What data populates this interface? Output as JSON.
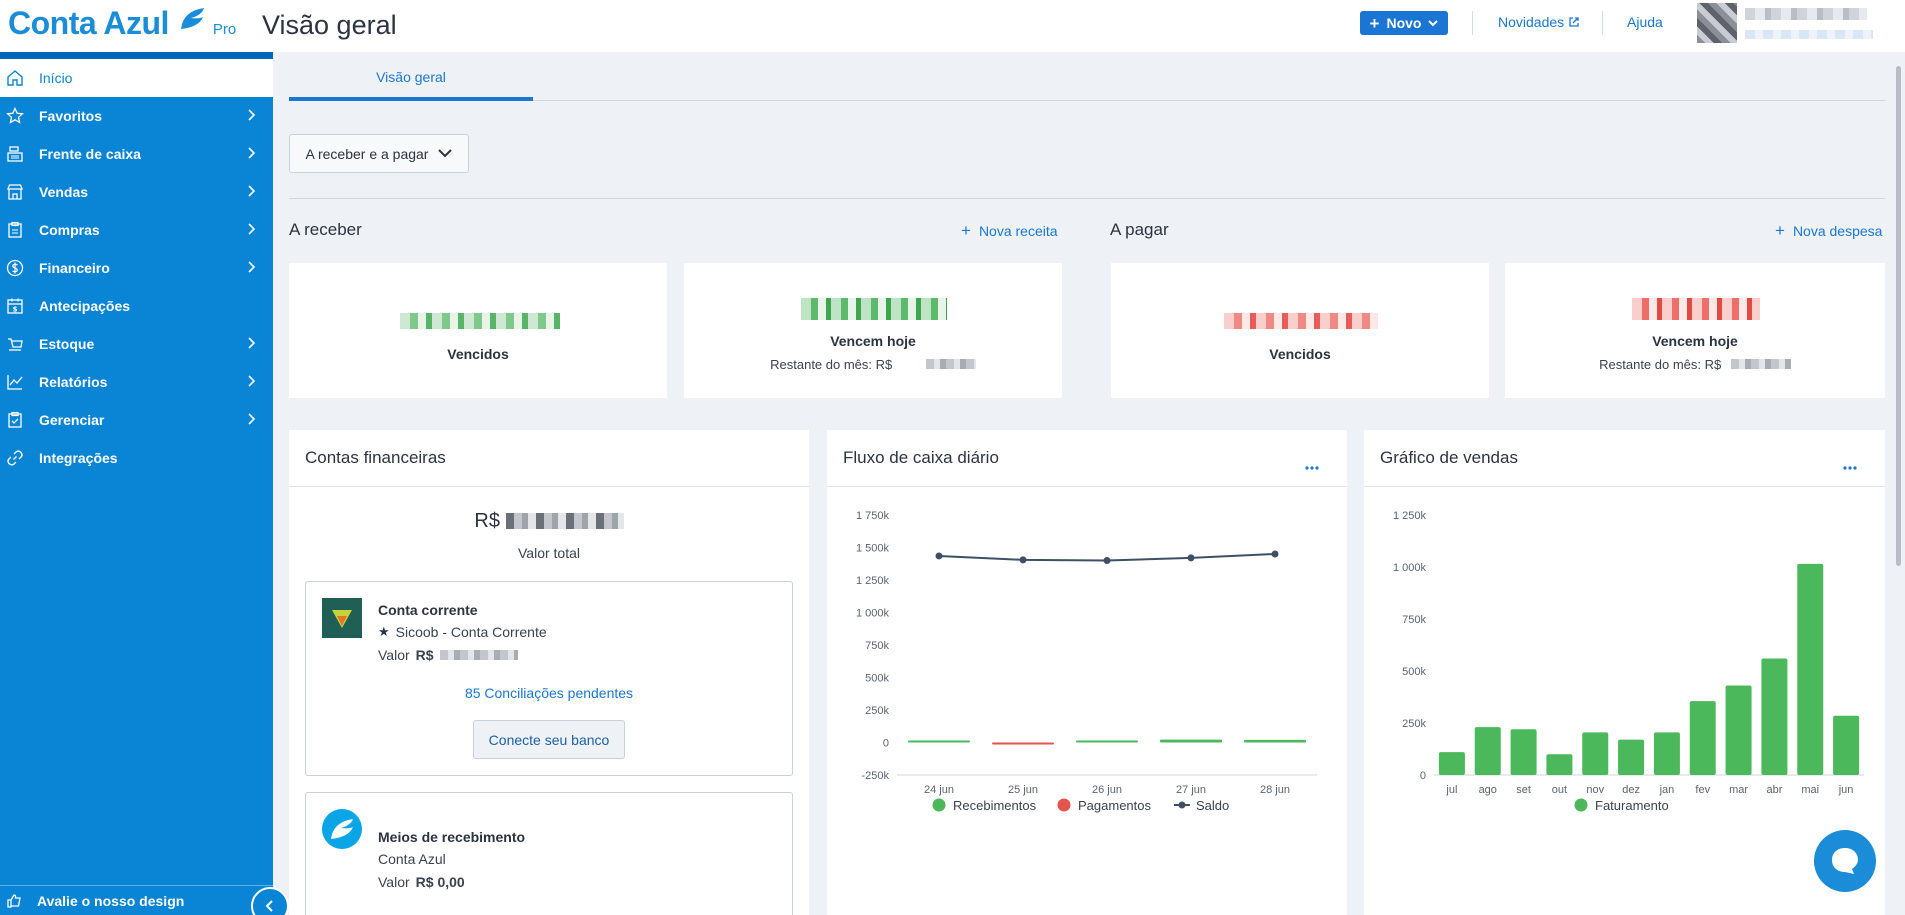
{
  "app": {
    "brand": "Conta Azul",
    "plan": "Pro",
    "page_title": "Visão geral",
    "colors": {
      "brand": "#1a8cd8",
      "sidebar": "#0a84d4",
      "accent": "#1a76d2",
      "receive": "#4cb85c",
      "pay": "#e5554f",
      "balance": "#3d5066"
    }
  },
  "header": {
    "new_button": "Novo",
    "news_link": "Novidades",
    "help_link": "Ajuda"
  },
  "sidebar": {
    "items": [
      {
        "label": "Início",
        "icon": "home-icon",
        "active": true,
        "has_children": false
      },
      {
        "label": "Favoritos",
        "icon": "star-icon",
        "active": false,
        "has_children": true
      },
      {
        "label": "Frente de caixa",
        "icon": "cash-register-icon",
        "active": false,
        "has_children": true
      },
      {
        "label": "Vendas",
        "icon": "store-icon",
        "active": false,
        "has_children": true
      },
      {
        "label": "Compras",
        "icon": "clipboard-icon",
        "active": false,
        "has_children": true
      },
      {
        "label": "Financeiro",
        "icon": "dollar-circle-icon",
        "active": false,
        "has_children": true
      },
      {
        "label": "Antecipações",
        "icon": "calendar-money-icon",
        "active": false,
        "has_children": false
      },
      {
        "label": "Estoque",
        "icon": "box-icon",
        "active": false,
        "has_children": true
      },
      {
        "label": "Relatórios",
        "icon": "line-chart-icon",
        "active": false,
        "has_children": true
      },
      {
        "label": "Gerenciar",
        "icon": "checklist-icon",
        "active": false,
        "has_children": true
      },
      {
        "label": "Integrações",
        "icon": "link-icon",
        "active": false,
        "has_children": false
      }
    ],
    "footer": "Avalie o nosso design"
  },
  "tabs": {
    "active": "Visão geral"
  },
  "filter": {
    "label": "A receber e a pagar"
  },
  "receivable": {
    "title": "A receber",
    "action": "Nova receita",
    "overdue_label": "Vencidos",
    "today_label": "Vencem hoje",
    "month_rest_label": "Restante do mês: R$"
  },
  "payable": {
    "title": "A pagar",
    "action": "Nova despesa",
    "overdue_label": "Vencidos",
    "today_label": "Vencem hoje",
    "month_rest_label": "Restante do mês: R$"
  },
  "accounts": {
    "title": "Contas financeiras",
    "currency": "R$",
    "total_label": "Valor total",
    "checking": {
      "title": "Conta corrente",
      "bank": "Sicoob - Conta Corrente",
      "value_label": "Valor",
      "value_currency": "R$",
      "pending": "85 Conciliações pendentes",
      "connect_button": "Conecte seu banco"
    },
    "receiving": {
      "title": "Meios de recebimento",
      "provider": "Conta Azul",
      "value_label": "Valor",
      "value": "R$ 0,00"
    }
  },
  "cashflow": {
    "title": "Fluxo de caixa diário",
    "menu": "···",
    "legend": [
      "Recebimentos",
      "Pagamentos",
      "Saldo"
    ]
  },
  "sales": {
    "title": "Gráfico de vendas",
    "menu": "···",
    "legend": [
      "Faturamento"
    ]
  },
  "chart_data": [
    {
      "type": "line",
      "title": "Fluxo de caixa diário",
      "categories": [
        "24 jun",
        "25 jun",
        "26 jun",
        "27 jun",
        "28 jun"
      ],
      "y_ticks": [
        "1 750k",
        "1 500k",
        "1 250k",
        "1 000k",
        "750k",
        "500k",
        "250k",
        "0",
        "-250k"
      ],
      "ylim": [
        -250000,
        1750000
      ],
      "series": [
        {
          "name": "Recebimentos",
          "kind": "bar",
          "color": "#4cb85c",
          "values": [
            8000,
            0,
            4000,
            22000,
            20000
          ]
        },
        {
          "name": "Pagamentos",
          "kind": "bar",
          "color": "#e5554f",
          "values": [
            0,
            -12000,
            0,
            0,
            0
          ]
        },
        {
          "name": "Saldo",
          "kind": "line",
          "color": "#3d5066",
          "values": [
            1435000,
            1405000,
            1400000,
            1420000,
            1450000
          ]
        }
      ],
      "legend": "bottom",
      "grid": false
    },
    {
      "type": "bar",
      "title": "Gráfico de vendas",
      "categories": [
        "jul",
        "ago",
        "set",
        "out",
        "nov",
        "dez",
        "jan",
        "fev",
        "mar",
        "abr",
        "mai",
        "jun"
      ],
      "y_ticks": [
        "1 250k",
        "1 000k",
        "750k",
        "500k",
        "250k",
        "0"
      ],
      "ylim": [
        0,
        1250000
      ],
      "series": [
        {
          "name": "Faturamento",
          "color": "#4cb85c",
          "values": [
            110000,
            230000,
            220000,
            100000,
            205000,
            170000,
            205000,
            355000,
            430000,
            560000,
            1015000,
            285000
          ]
        }
      ],
      "legend": "bottom",
      "grid": false
    }
  ]
}
